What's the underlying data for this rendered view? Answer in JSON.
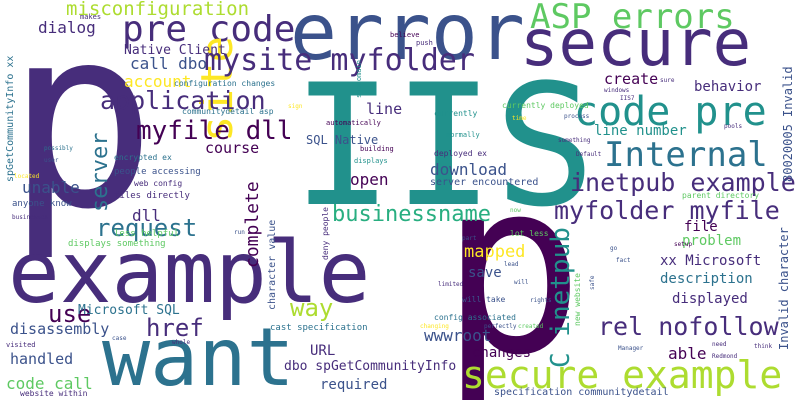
{
  "colors": {
    "background": "#ffffff",
    "palette": [
      "#440154",
      "#472d7b",
      "#3b528b",
      "#2c728e",
      "#21918c",
      "#28ae80",
      "#5ec962",
      "#addc30",
      "#fde725"
    ]
  },
  "words": [
    {
      "text": "p",
      "color": "#472d7b"
    },
    {
      "text": "IIS",
      "color": "#21918c"
    },
    {
      "text": "p",
      "color": "#440154"
    },
    {
      "text": "error",
      "color": "#3b528b"
    },
    {
      "text": "secure",
      "color": "#472d7b"
    },
    {
      "text": "example",
      "color": "#472d7b"
    },
    {
      "text": "want",
      "color": "#2c728e"
    },
    {
      "text": "pre code",
      "color": "#472d7b"
    },
    {
      "text": "ASP errors",
      "color": "#5ec962"
    },
    {
      "text": "code pre",
      "color": "#21918c"
    },
    {
      "text": "Internal",
      "color": "#2c728e"
    },
    {
      "text": "secure example",
      "color": "#addc30"
    },
    {
      "text": "site",
      "color": "#fde725"
    },
    {
      "text": "mysite myfolder",
      "color": "#472d7b"
    },
    {
      "text": "application",
      "color": "#472d7b"
    },
    {
      "text": "myfile dll",
      "color": "#440154"
    },
    {
      "text": "inetpub example",
      "color": "#472d7b"
    },
    {
      "text": "myfolder myfile",
      "color": "#472d7b"
    },
    {
      "text": "businessname",
      "color": "#28ae80"
    },
    {
      "text": "misconfiguration",
      "color": "#addc30"
    },
    {
      "text": "request",
      "color": "#2c728e"
    },
    {
      "text": "rel nofollow",
      "color": "#472d7b"
    },
    {
      "text": "C inetpub",
      "color": "#21918c"
    },
    {
      "text": "way",
      "color": "#addc30"
    },
    {
      "text": "href",
      "color": "#472d7b"
    },
    {
      "text": "use",
      "color": "#440154"
    },
    {
      "text": "server",
      "color": "#2c728e"
    },
    {
      "text": "dialog",
      "color": "#472d7b"
    },
    {
      "text": "call dbo",
      "color": "#3b528b"
    },
    {
      "text": "account",
      "color": "#fde725"
    },
    {
      "text": "Native Client",
      "color": "#472d7b"
    },
    {
      "text": "unable",
      "color": "#3b528b"
    },
    {
      "text": "dll",
      "color": "#472d7b"
    },
    {
      "text": "complete",
      "color": "#440154"
    },
    {
      "text": "course",
      "color": "#440154"
    },
    {
      "text": "open",
      "color": "#440154"
    },
    {
      "text": "download",
      "color": "#3b528b"
    },
    {
      "text": "mapped",
      "color": "#fde725"
    },
    {
      "text": "save",
      "color": "#3b528b"
    },
    {
      "text": "line",
      "color": "#472d7b"
    },
    {
      "text": "line number",
      "color": "#21918c"
    },
    {
      "text": "create",
      "color": "#440154"
    },
    {
      "text": "behavior",
      "color": "#472d7b"
    },
    {
      "text": "file",
      "color": "#440154"
    },
    {
      "text": "problem",
      "color": "#5ec962"
    },
    {
      "text": "description",
      "color": "#2c728e"
    },
    {
      "text": "displayed",
      "color": "#472d7b"
    },
    {
      "text": "able",
      "color": "#440154"
    },
    {
      "text": "xx Microsoft",
      "color": "#472d7b"
    },
    {
      "text": "wwwroot",
      "color": "#3b528b"
    },
    {
      "text": "URL",
      "color": "#472d7b"
    },
    {
      "text": "changes",
      "color": "#440154"
    },
    {
      "text": "required",
      "color": "#3b528b"
    },
    {
      "text": "disassembly",
      "color": "#3b528b"
    },
    {
      "text": "handled",
      "color": "#3b528b"
    },
    {
      "text": "code call",
      "color": "#5ec962"
    },
    {
      "text": "Microsoft SQL",
      "color": "#2c728e"
    },
    {
      "text": "dbo spGetCommunityInfo",
      "color": "#472d7b"
    },
    {
      "text": "SQL Native",
      "color": "#3b528b"
    },
    {
      "text": "server encountered",
      "color": "#3b528b"
    },
    {
      "text": "cast specification",
      "color": "#2c728e"
    },
    {
      "text": "specification communitydetail",
      "color": "#3b528b"
    },
    {
      "text": "character value",
      "color": "#3b528b"
    },
    {
      "text": "Invalid character",
      "color": "#3b528b"
    },
    {
      "text": "80020005 Invalid",
      "color": "#3b528b"
    },
    {
      "text": "spGetCommunityInfo xx",
      "color": "#2c728e"
    },
    {
      "text": "anyone know",
      "color": "#3b528b"
    },
    {
      "text": "files directly",
      "color": "#472d7b"
    },
    {
      "text": "people accessing",
      "color": "#3b528b"
    },
    {
      "text": "less helpful",
      "color": "#5ec962"
    },
    {
      "text": "displays something",
      "color": "#5ec962"
    },
    {
      "text": "configuration changes",
      "color": "#2c728e"
    },
    {
      "text": "communitydetail asp",
      "color": "#2c728e"
    },
    {
      "text": "encrypted ex",
      "color": "#2c728e"
    },
    {
      "text": "web config",
      "color": "#472d7b"
    },
    {
      "text": "deployed ex",
      "color": "#472d7b"
    },
    {
      "text": "currently deployed",
      "color": "#5ec962"
    },
    {
      "text": "config associated",
      "color": "#2c728e"
    },
    {
      "text": "will take",
      "color": "#3b528b"
    },
    {
      "text": "parent directory",
      "color": "#5ec962"
    },
    {
      "text": "new website",
      "color": "#5ec962"
    },
    {
      "text": "lot less",
      "color": "#5ec962"
    },
    {
      "text": "deny people",
      "color": "#472d7b"
    },
    {
      "text": "website within",
      "color": "#472d7b"
    },
    {
      "text": "currently",
      "color": "#21918c"
    },
    {
      "text": "normally",
      "color": "#21918c"
    },
    {
      "text": "automatically",
      "color": "#440154"
    },
    {
      "text": "building",
      "color": "#440154"
    },
    {
      "text": "displays",
      "color": "#21918c"
    },
    {
      "text": "subdomain",
      "color": "#21918c"
    },
    {
      "text": "believe",
      "color": "#440154"
    },
    {
      "text": "push",
      "color": "#472d7b"
    },
    {
      "text": "makes",
      "color": "#472d7b"
    },
    {
      "text": "windows",
      "color": "#472d7b"
    },
    {
      "text": "sure",
      "color": "#472d7b"
    },
    {
      "text": "IIS7",
      "color": "#472d7b"
    },
    {
      "text": "process",
      "color": "#3b528b"
    },
    {
      "text": "time",
      "color": "#fde725"
    },
    {
      "text": "something",
      "color": "#472d7b"
    },
    {
      "text": "pools",
      "color": "#472d7b"
    },
    {
      "text": "Default",
      "color": "#472d7b"
    },
    {
      "text": "sign",
      "color": "#fde725"
    },
    {
      "text": "possibly",
      "color": "#2c728e"
    },
    {
      "text": "user",
      "color": "#3b528b"
    },
    {
      "text": "located",
      "color": "#fde725"
    },
    {
      "text": "businesses",
      "color": "#472d7b"
    },
    {
      "text": "whole",
      "color": "#472d7b"
    },
    {
      "text": "run",
      "color": "#3b528b"
    },
    {
      "text": "part",
      "color": "#3b528b"
    },
    {
      "text": "lead",
      "color": "#3b528b"
    },
    {
      "text": "will",
      "color": "#3b528b"
    },
    {
      "text": "now",
      "color": "#5ec962"
    },
    {
      "text": "go",
      "color": "#3b528b"
    },
    {
      "text": "fact",
      "color": "#3b528b"
    },
    {
      "text": "setup",
      "color": "#440154"
    },
    {
      "text": "limited",
      "color": "#472d7b"
    },
    {
      "text": "rights",
      "color": "#3b528b"
    },
    {
      "text": "safe",
      "color": "#3b528b"
    },
    {
      "text": "changing",
      "color": "#fde725"
    },
    {
      "text": "perfectly",
      "color": "#3b528b"
    },
    {
      "text": "created",
      "color": "#5ec962"
    },
    {
      "text": "visited",
      "color": "#472d7b"
    },
    {
      "text": "case",
      "color": "#3b528b"
    },
    {
      "text": "Manager",
      "color": "#3b528b"
    },
    {
      "text": "need",
      "color": "#472d7b"
    },
    {
      "text": "think",
      "color": "#472d7b"
    },
    {
      "text": "Redmond",
      "color": "#472d7b"
    }
  ]
}
